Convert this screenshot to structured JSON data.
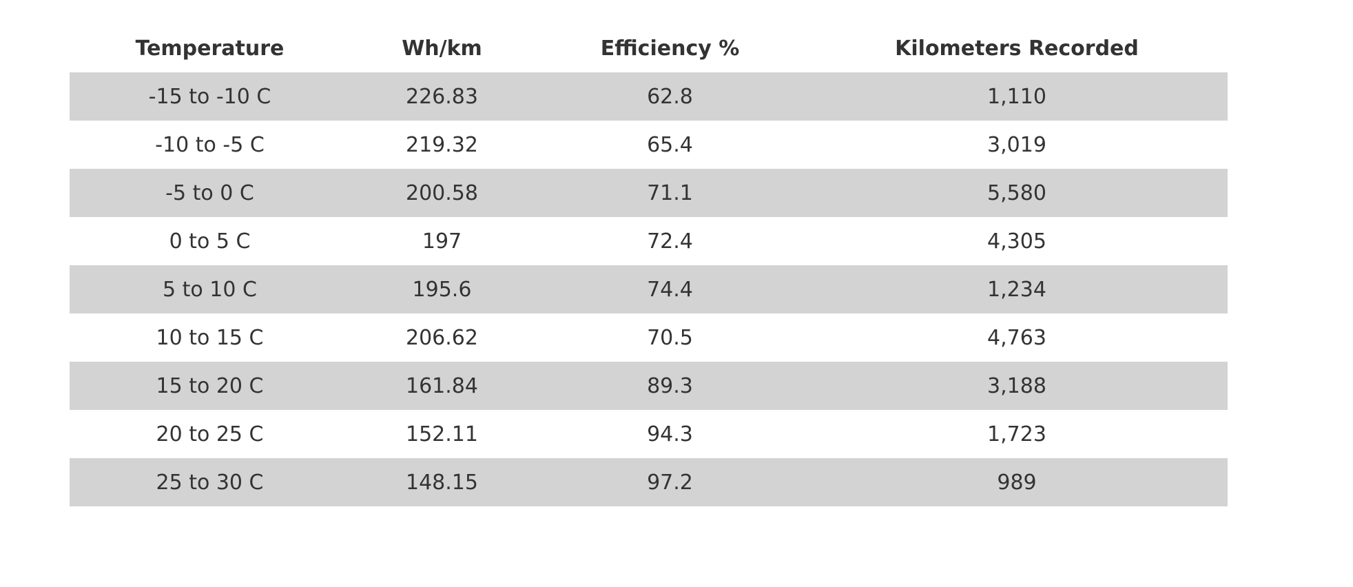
{
  "table": {
    "headers": [
      "Temperature",
      "Wh/km",
      "Efficiency %",
      "Kilometers Recorded"
    ],
    "rows": [
      [
        "-15 to -10 C",
        "226.83",
        "62.8",
        "1,110"
      ],
      [
        "-10 to -5 C",
        "219.32",
        "65.4",
        "3,019"
      ],
      [
        "-5 to 0 C",
        "200.58",
        "71.1",
        "5,580"
      ],
      [
        "0 to 5 C",
        "197",
        "72.4",
        "4,305"
      ],
      [
        "5 to 10 C",
        "195.6",
        "74.4",
        "1,234"
      ],
      [
        "10 to 15 C",
        "206.62",
        "70.5",
        "4,763"
      ],
      [
        "15 to 20 C",
        "161.84",
        "89.3",
        "3,188"
      ],
      [
        "20 to 25 C",
        "152.11",
        "94.3",
        "1,723"
      ],
      [
        "25 to 30 C",
        "148.15",
        "97.2",
        "989"
      ]
    ],
    "stripe_color": "#d3d3d3",
    "text_color": "#333333"
  }
}
